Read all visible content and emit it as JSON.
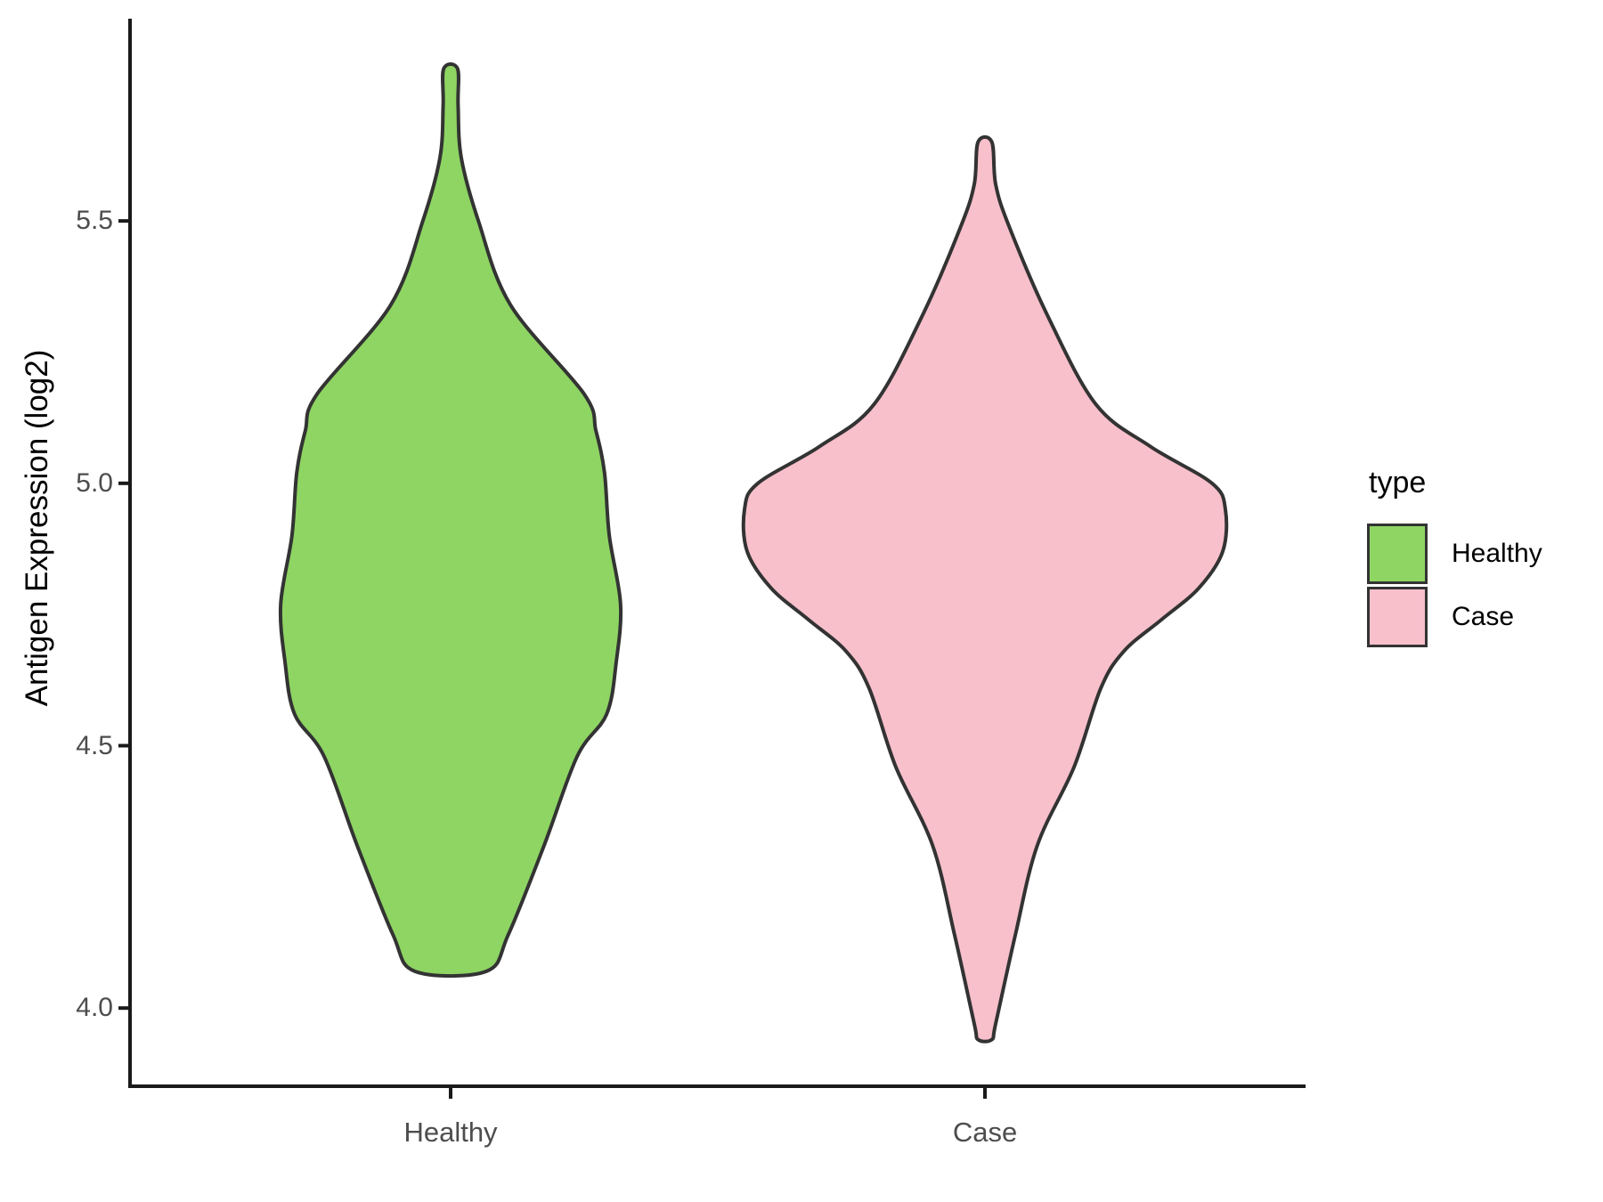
{
  "figure": {
    "background": "#FFFFFF"
  },
  "chart_data": {
    "type": "violin",
    "title": "",
    "xlabel": "",
    "ylabel": "Antigen Expression (log2)",
    "categories": [
      "Healthy",
      "Case"
    ],
    "category_positions": [
      1,
      2
    ],
    "y_ticks": [
      4.0,
      4.5,
      5.0,
      5.5
    ],
    "y_tick_labels": [
      "4.0",
      "4.5",
      "5.0",
      "5.5"
    ],
    "ylim": [
      3.851,
      5.882
    ],
    "xlim": [
      0.4,
      2.6
    ],
    "grid": false,
    "legend": {
      "title": "type",
      "position": "right"
    },
    "style": {
      "outline_color": "#333333",
      "axis_color": "#1a1a1a",
      "tick_text_color": "#4d4d4d",
      "violin_stroke_width": 4,
      "axis_stroke_width": 4
    },
    "series": [
      {
        "name": "Healthy",
        "color": "#8ED563",
        "position": 1,
        "min": 4.07,
        "max": 5.79,
        "profile": [
          {
            "v": 5.79,
            "w": 0.013
          },
          {
            "v": 5.72,
            "w": 0.014
          },
          {
            "v": 5.62,
            "w": 0.02
          },
          {
            "v": 5.5,
            "w": 0.052
          },
          {
            "v": 5.34,
            "w": 0.112
          },
          {
            "v": 5.17,
            "w": 0.25
          },
          {
            "v": 5.1,
            "w": 0.272
          },
          {
            "v": 5.02,
            "w": 0.288
          },
          {
            "v": 4.9,
            "w": 0.297
          },
          {
            "v": 4.77,
            "w": 0.318
          },
          {
            "v": 4.66,
            "w": 0.31
          },
          {
            "v": 4.56,
            "w": 0.292
          },
          {
            "v": 4.48,
            "w": 0.237
          },
          {
            "v": 4.31,
            "w": 0.175
          },
          {
            "v": 4.14,
            "w": 0.108
          },
          {
            "v": 4.07,
            "w": 0.067
          }
        ]
      },
      {
        "name": "Case",
        "color": "#F7C0CB",
        "position": 2,
        "min": 3.94,
        "max": 5.65,
        "profile": [
          {
            "v": 5.65,
            "w": 0.013
          },
          {
            "v": 5.57,
            "w": 0.02
          },
          {
            "v": 5.49,
            "w": 0.045
          },
          {
            "v": 5.32,
            "w": 0.117
          },
          {
            "v": 5.15,
            "w": 0.208
          },
          {
            "v": 5.07,
            "w": 0.31
          },
          {
            "v": 5.0,
            "w": 0.425
          },
          {
            "v": 4.95,
            "w": 0.45
          },
          {
            "v": 4.87,
            "w": 0.445
          },
          {
            "v": 4.8,
            "w": 0.4
          },
          {
            "v": 4.74,
            "w": 0.33
          },
          {
            "v": 4.68,
            "w": 0.26
          },
          {
            "v": 4.61,
            "w": 0.217
          },
          {
            "v": 4.46,
            "w": 0.167
          },
          {
            "v": 4.31,
            "w": 0.098
          },
          {
            "v": 4.14,
            "w": 0.057
          },
          {
            "v": 3.97,
            "w": 0.02
          },
          {
            "v": 3.94,
            "w": 0.013
          }
        ]
      }
    ]
  }
}
